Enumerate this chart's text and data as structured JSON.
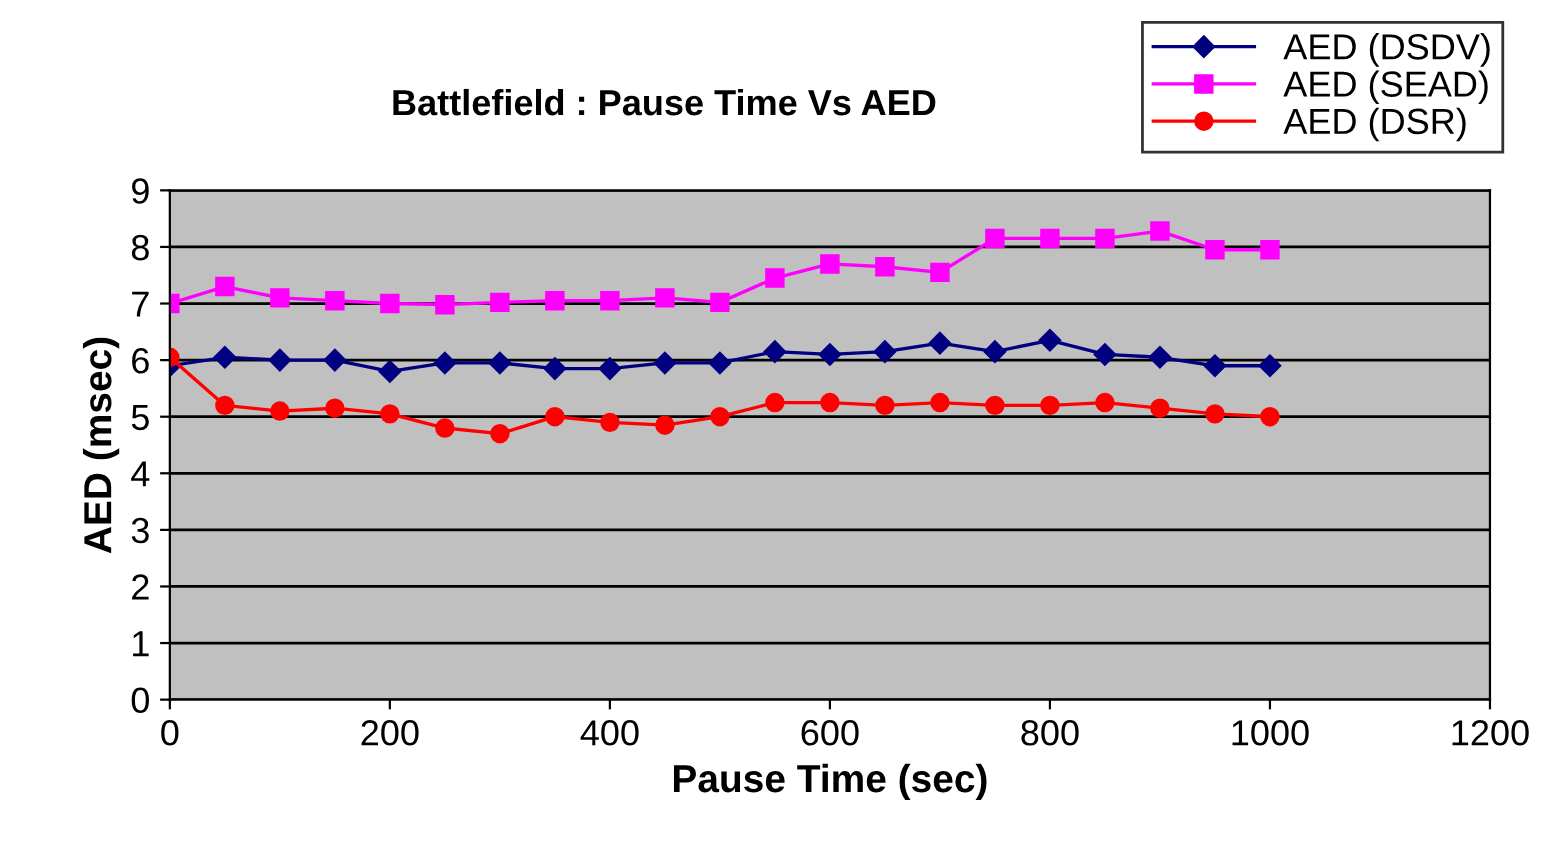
{
  "chart_data": {
    "type": "line",
    "title": "Battlefield : Pause Time Vs AED",
    "xlabel": "Pause Time (sec)",
    "ylabel": "AED (msec)",
    "x": [
      0,
      50,
      100,
      150,
      200,
      250,
      300,
      350,
      400,
      450,
      500,
      550,
      600,
      650,
      700,
      750,
      800,
      850,
      900,
      950,
      1000
    ],
    "series": [
      {
        "name": "AED (DSDV)",
        "color": "#000080",
        "marker": "diamond",
        "values": [
          5.9,
          6.05,
          6.0,
          6.0,
          5.8,
          5.95,
          5.95,
          5.85,
          5.85,
          5.95,
          5.95,
          6.15,
          6.1,
          6.15,
          6.3,
          6.15,
          6.35,
          6.1,
          6.05,
          5.9,
          5.9
        ]
      },
      {
        "name": "AED (SEAD)",
        "color": "#ff00ff",
        "marker": "square",
        "values": [
          7.0,
          7.3,
          7.1,
          7.05,
          7.0,
          6.98,
          7.02,
          7.05,
          7.05,
          7.1,
          7.02,
          7.45,
          7.7,
          7.65,
          7.55,
          8.15,
          8.15,
          8.15,
          8.28,
          7.95,
          7.95
        ]
      },
      {
        "name": "AED (DSR)",
        "color": "#ff0000",
        "marker": "circle",
        "values": [
          6.05,
          5.2,
          5.1,
          5.15,
          5.05,
          4.8,
          4.7,
          5.0,
          4.9,
          4.85,
          5.0,
          5.25,
          5.25,
          5.2,
          5.25,
          5.2,
          5.2,
          5.25,
          5.15,
          5.05,
          5.0
        ]
      }
    ],
    "xlim": [
      0,
      1200
    ],
    "xticks": [
      0,
      200,
      400,
      600,
      800,
      1000,
      1200
    ],
    "ylim": [
      0,
      9
    ],
    "yticks": [
      0,
      1,
      2,
      3,
      4,
      5,
      6,
      7,
      8,
      9
    ],
    "grid": "y",
    "legend": "top right"
  }
}
